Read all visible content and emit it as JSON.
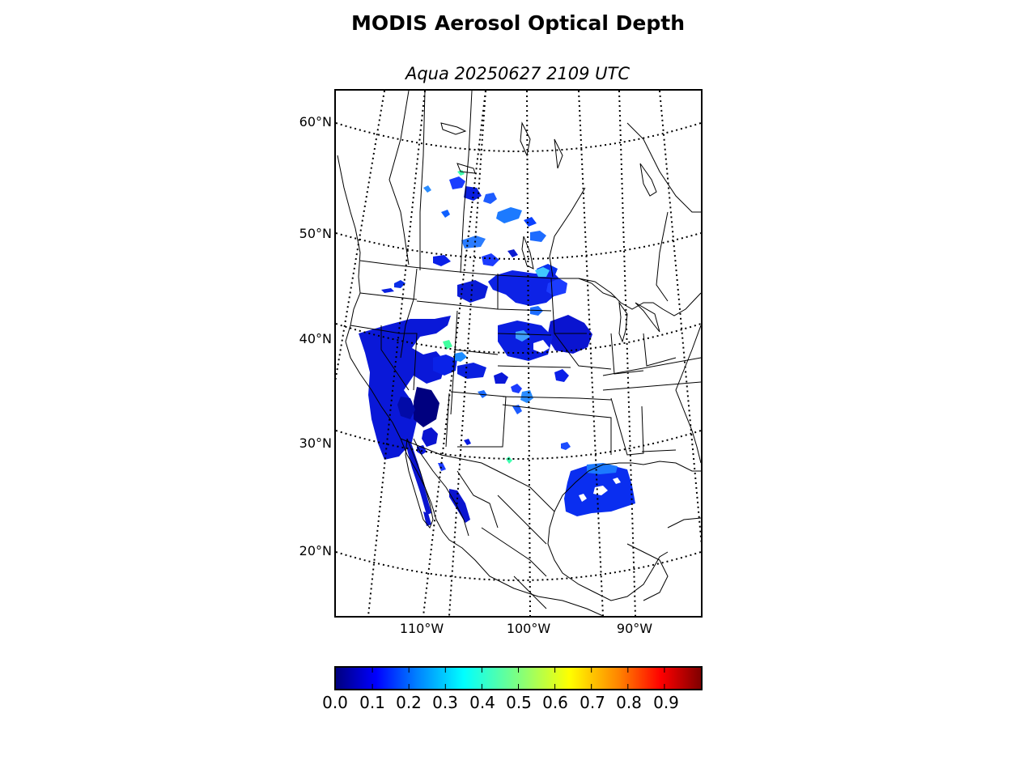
{
  "title": "MODIS Aerosol Optical Depth",
  "subtitle": "Aqua 20250627 2109 UTC",
  "map": {
    "projection": "conic (Lambert-like), North America",
    "background": "#ffffff",
    "coastline_color": "#000000",
    "graticule_style": "dotted"
  },
  "lat_labels": [
    "60°N",
    "50°N",
    "40°N",
    "30°N",
    "20°N"
  ],
  "lon_labels": [
    "110°W",
    "100°W",
    "90°W"
  ],
  "colorbar": {
    "colormap": "jet",
    "min": 0.0,
    "max": 1.0,
    "ticks": [
      "0.0",
      "0.1",
      "0.2",
      "0.3",
      "0.4",
      "0.5",
      "0.6",
      "0.7",
      "0.8",
      "0.9"
    ],
    "colors": [
      "#00007f",
      "#0000ff",
      "#007fff",
      "#00ffff",
      "#7fff7f",
      "#ffff00",
      "#ff7f00",
      "#ff0000",
      "#7f0000"
    ]
  }
}
